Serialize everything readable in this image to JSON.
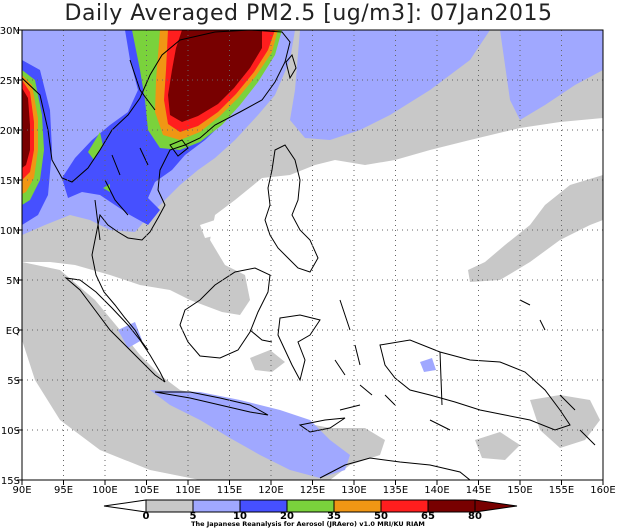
{
  "title": "Daily Averaged PM2.5 [ug/m3]: 07Jan2015",
  "credit": "The Japanese Reanalysis for Aerosol (JRAero) v1.0 MRI/KU RIAM",
  "lat_ticks": [
    "30N",
    "25N",
    "20N",
    "15N",
    "10N",
    "5N",
    "EQ",
    "5S",
    "10S",
    "15S"
  ],
  "lon_ticks": [
    "90E",
    "95E",
    "100E",
    "105E",
    "110E",
    "115E",
    "120E",
    "125E",
    "130E",
    "135E",
    "140E",
    "145E",
    "150E",
    "155E",
    "160E"
  ],
  "colorbar": {
    "labels": [
      "0",
      "5",
      "10",
      "20",
      "35",
      "50",
      "65",
      "80"
    ],
    "colors": [
      "#ffffff",
      "#c8c8c8",
      "#a0a8ff",
      "#4650ff",
      "#7ad23c",
      "#f09614",
      "#ff1e1e",
      "#780000"
    ]
  },
  "map": {
    "region": {
      "lon_min": 90,
      "lon_max": 160,
      "lat_min": -15,
      "lat_max": 30
    },
    "grid": "dotted",
    "levels_ug_m3": [
      5,
      10,
      20,
      35,
      50,
      65,
      80
    ]
  }
}
